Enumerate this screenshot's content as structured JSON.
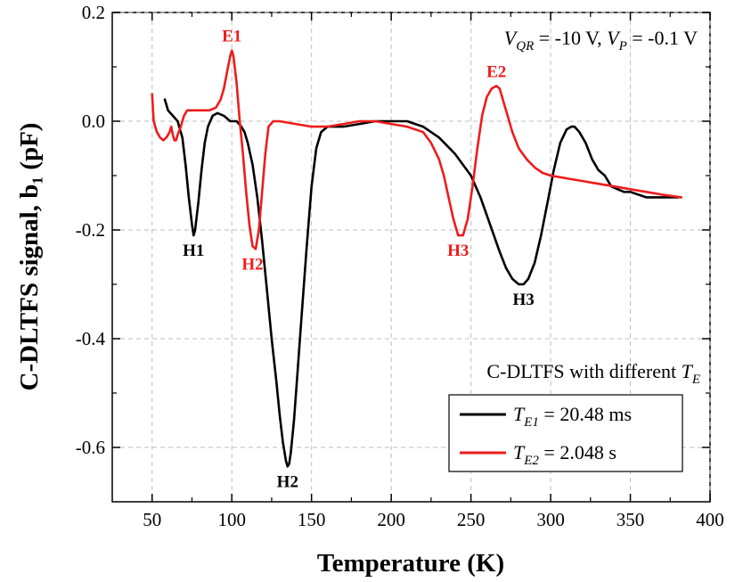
{
  "chart_data": {
    "type": "line",
    "xlabel": "Temperature (K)",
    "ylabel": "C-DLTFS signal, b₁ (pF)",
    "xlim": [
      25,
      400
    ],
    "ylim": [
      -0.7,
      0.2
    ],
    "xticks": [
      50,
      100,
      150,
      200,
      250,
      300,
      350,
      400
    ],
    "yticks": [
      0.2,
      0.0,
      -0.2,
      -0.4,
      -0.6
    ],
    "xtick_labels": [
      "50",
      "100",
      "150",
      "200",
      "250",
      "300",
      "350",
      "400"
    ],
    "ytick_labels": [
      "0.2",
      "0.0",
      "-0.2",
      "-0.4",
      "-0.6"
    ],
    "grid": true,
    "condition": {
      "v_qr": "V_QR = -10 V",
      "v_p": "V_P = -0.1 V"
    },
    "legend_title": "C-DLTFS with different T_E",
    "legend_position": "bottom-right",
    "series": [
      {
        "name": "T_E1 = 20.48 ms",
        "color": "#000000",
        "x": [
          58,
          60,
          63,
          66,
          69,
          71,
          73,
          75,
          76,
          77,
          79,
          81,
          83,
          85,
          88,
          91,
          95,
          99,
          103,
          106,
          108,
          110,
          113,
          116,
          119,
          122,
          125,
          128,
          130,
          132,
          134,
          135,
          136,
          137,
          139,
          141,
          144,
          147,
          150,
          153,
          156,
          160,
          170,
          180,
          190,
          200,
          210,
          220,
          230,
          240,
          250,
          256,
          262,
          268,
          272,
          276,
          280,
          283,
          286,
          290,
          294,
          298,
          302,
          306,
          310,
          313,
          315,
          318,
          322,
          326,
          330,
          334,
          338,
          342,
          346,
          350,
          355,
          360,
          365,
          370,
          375,
          380
        ],
        "y": [
          0.04,
          0.02,
          0.01,
          0.0,
          -0.03,
          -0.08,
          -0.14,
          -0.19,
          -0.21,
          -0.2,
          -0.15,
          -0.09,
          -0.04,
          -0.01,
          0.01,
          0.015,
          0.01,
          0.0,
          0.0,
          -0.01,
          -0.02,
          -0.04,
          -0.08,
          -0.14,
          -0.22,
          -0.31,
          -0.4,
          -0.48,
          -0.54,
          -0.59,
          -0.625,
          -0.635,
          -0.63,
          -0.61,
          -0.55,
          -0.47,
          -0.35,
          -0.23,
          -0.12,
          -0.05,
          -0.02,
          -0.01,
          -0.01,
          -0.005,
          0.0,
          0.0,
          0.0,
          -0.01,
          -0.03,
          -0.06,
          -0.1,
          -0.14,
          -0.19,
          -0.24,
          -0.27,
          -0.29,
          -0.3,
          -0.3,
          -0.29,
          -0.26,
          -0.21,
          -0.15,
          -0.09,
          -0.04,
          -0.015,
          -0.01,
          -0.01,
          -0.02,
          -0.04,
          -0.07,
          -0.09,
          -0.1,
          -0.12,
          -0.125,
          -0.13,
          -0.13,
          -0.135,
          -0.14,
          -0.14,
          -0.14,
          -0.14,
          -0.14
        ]
      },
      {
        "name": "T_E2 = 2.048 s",
        "color": "#ee1c1c",
        "x": [
          50,
          51,
          53,
          55,
          57,
          59,
          61,
          62,
          63,
          64,
          65,
          66,
          68,
          70,
          72,
          74,
          78,
          82,
          86,
          90,
          93,
          95,
          97,
          99,
          100,
          101,
          103,
          105,
          107,
          109,
          111,
          113,
          115,
          117,
          119,
          121,
          123,
          126,
          130,
          140,
          150,
          160,
          170,
          180,
          190,
          200,
          210,
          215,
          220,
          225,
          230,
          233,
          236,
          239,
          242,
          245,
          248,
          251,
          254,
          257,
          260,
          263,
          266,
          268,
          270,
          273,
          276,
          280,
          285,
          290,
          295,
          300,
          310,
          320,
          330,
          340,
          350,
          360,
          370,
          382
        ],
        "y": [
          0.05,
          0.0,
          -0.02,
          -0.03,
          -0.035,
          -0.03,
          -0.02,
          -0.01,
          -0.025,
          -0.035,
          -0.035,
          -0.025,
          -0.01,
          0.01,
          0.02,
          0.02,
          0.02,
          0.02,
          0.02,
          0.025,
          0.04,
          0.06,
          0.09,
          0.12,
          0.13,
          0.12,
          0.07,
          0.0,
          -0.06,
          -0.13,
          -0.19,
          -0.23,
          -0.235,
          -0.2,
          -0.13,
          -0.06,
          -0.01,
          0.0,
          0.0,
          -0.005,
          -0.01,
          -0.01,
          -0.005,
          0.0,
          0.0,
          -0.005,
          -0.01,
          -0.015,
          -0.02,
          -0.04,
          -0.07,
          -0.1,
          -0.14,
          -0.18,
          -0.21,
          -0.21,
          -0.18,
          -0.12,
          -0.05,
          0.01,
          0.045,
          0.06,
          0.065,
          0.06,
          0.04,
          0.01,
          -0.02,
          -0.05,
          -0.07,
          -0.085,
          -0.095,
          -0.1,
          -0.105,
          -0.11,
          -0.115,
          -0.12,
          -0.125,
          -0.13,
          -0.135,
          -0.14
        ]
      }
    ],
    "annotations": [
      {
        "text": "H1",
        "x": 76,
        "y": -0.21,
        "color": "#000000",
        "position": "below"
      },
      {
        "text": "H2",
        "x": 135,
        "y": -0.635,
        "color": "#000000",
        "position": "below"
      },
      {
        "text": "H3",
        "x": 283,
        "y": -0.3,
        "color": "#000000",
        "position": "below"
      },
      {
        "text": "E1",
        "x": 100,
        "y": 0.13,
        "color": "#ee1c1c",
        "position": "above"
      },
      {
        "text": "H2",
        "x": 113,
        "y": -0.235,
        "color": "#ee1c1c",
        "position": "below"
      },
      {
        "text": "H3",
        "x": 242,
        "y": -0.21,
        "color": "#ee1c1c",
        "position": "below"
      },
      {
        "text": "E2",
        "x": 266,
        "y": 0.065,
        "color": "#ee1c1c",
        "position": "above"
      }
    ]
  }
}
